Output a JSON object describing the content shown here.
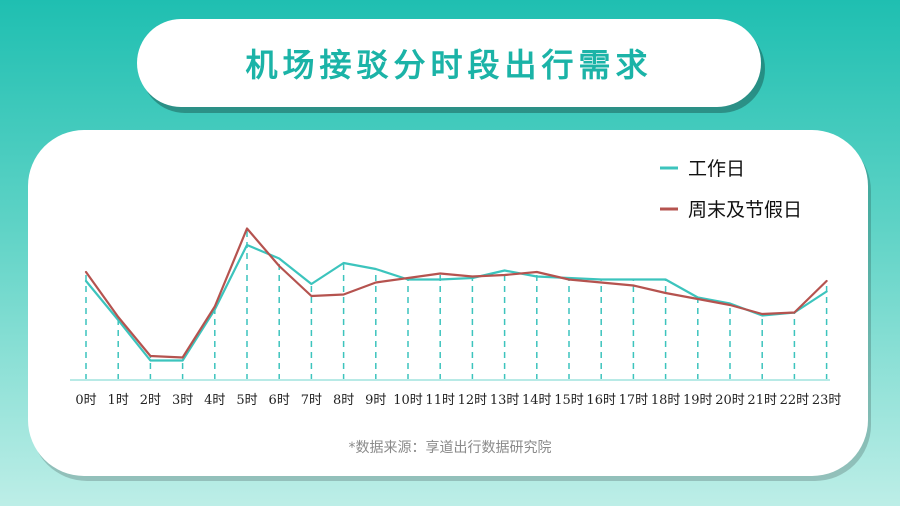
{
  "title": "机场接驳分时段出行需求",
  "source": "*数据来源：享道出行数据研究院",
  "colors": {
    "workday": "#3cc4bd",
    "weekend": "#b5534f",
    "axis": "#b8eae6",
    "guide": "#3cc4bd"
  },
  "chart_data": {
    "type": "line",
    "title": "机场接驳分时段出行需求",
    "xlabel": "",
    "ylabel": "",
    "ylim": [
      0,
      100
    ],
    "grid": false,
    "legend_position": "top-right",
    "categories": [
      "0时",
      "1时",
      "2时",
      "3时",
      "4时",
      "5时",
      "6时",
      "7时",
      "8时",
      "9时",
      "10时",
      "11时",
      "12时",
      "13时",
      "14时",
      "15时",
      "16时",
      "17时",
      "18时",
      "19时",
      "20时",
      "21时",
      "22时",
      "23时"
    ],
    "series": [
      {
        "name": "工作日",
        "color": "#3cc4bd",
        "values": [
          66,
          40,
          13,
          13,
          47,
          90,
          81,
          64,
          78,
          74,
          67,
          67,
          68,
          73,
          69,
          68,
          67,
          67,
          67,
          55,
          51,
          43,
          45,
          59
        ]
      },
      {
        "name": "周末及节假日",
        "color": "#b5534f",
        "values": [
          72,
          42,
          16,
          15,
          49,
          101,
          76,
          56,
          57,
          65,
          68,
          71,
          69,
          70,
          72,
          67,
          65,
          63,
          58,
          54,
          50,
          44,
          45,
          66
        ]
      }
    ]
  }
}
